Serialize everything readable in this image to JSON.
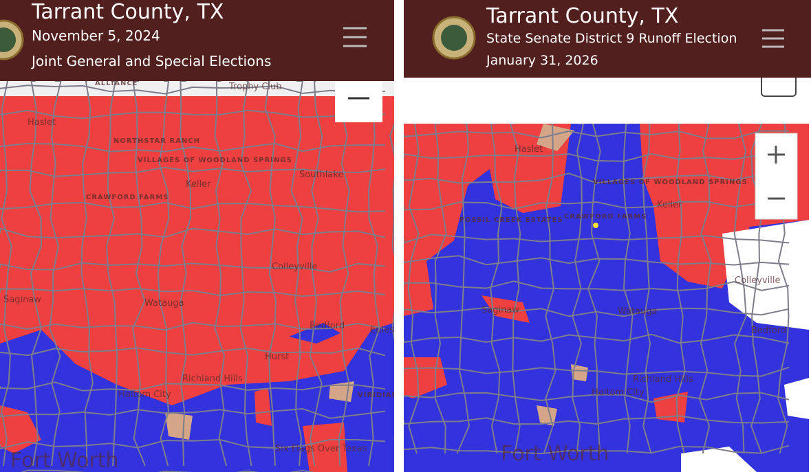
{
  "panels": [
    {
      "header": {
        "lines": [
          "Tarrant County, TX",
          "November 5, 2024",
          "Joint General and Special Elections"
        ]
      },
      "map_labels": [
        "ALLIANCE",
        "Trophy Club",
        "Haslet",
        "NORTHSTAR RANCH",
        "VILLAGES OF WOODLAND SPRINGS",
        "Keller",
        "Southlake",
        "CRAWFORD FARMS",
        "Colleyville",
        "Saginaw",
        "Watauga",
        "Bedford",
        "Euless",
        "Hurst",
        "Richland Hills",
        "Haltom City",
        "VIRIDIAN",
        "Six Flags Over Texas",
        "Fort Worth"
      ]
    },
    {
      "header": {
        "lines": [
          "Tarrant County, TX",
          "State Senate District 9 Runoff Election",
          "January 31, 2026"
        ]
      },
      "map_labels": [
        "Haslet",
        "VILLAGES OF WOODLAND SPRINGS",
        "Keller",
        "CRAWFORD FARMS",
        "FOSSIL CREEK ESTATES",
        "Saginaw",
        "Watauga",
        "Colleyville",
        "Bedford",
        "Richland Hills",
        "Haltom City",
        "Fort Worth"
      ]
    }
  ]
}
